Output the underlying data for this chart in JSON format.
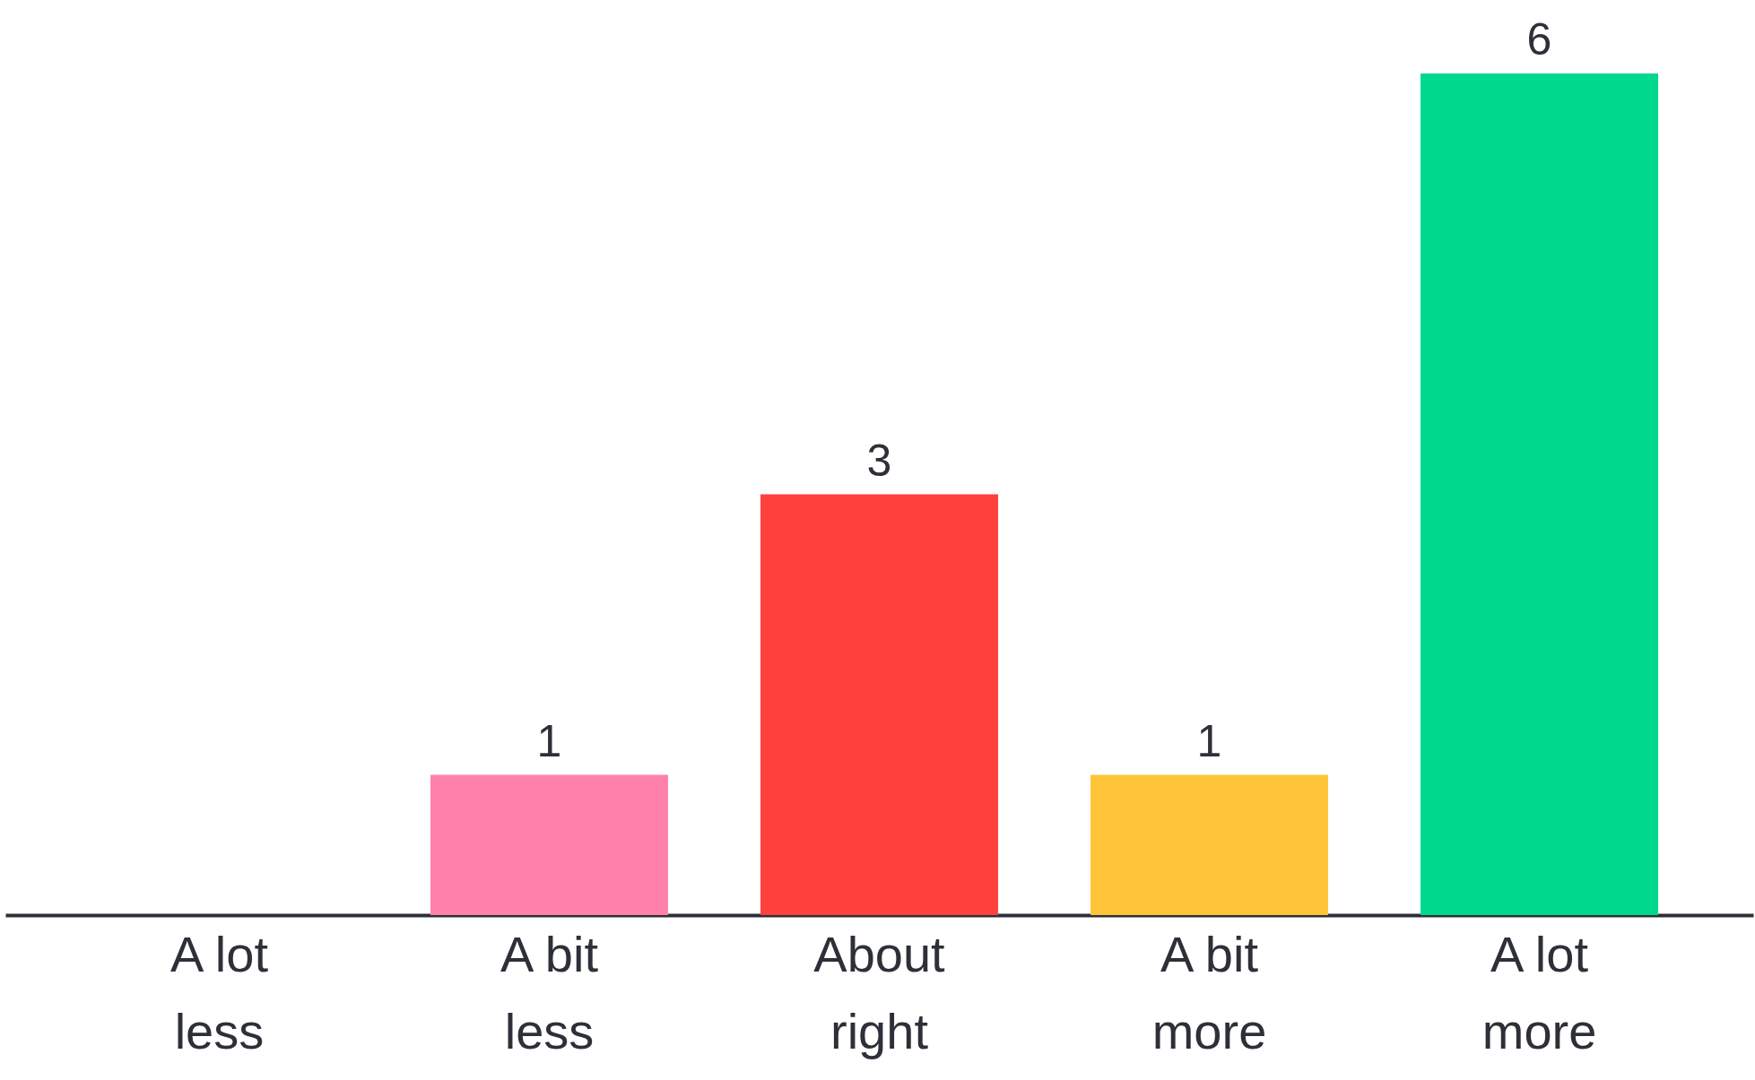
{
  "chart_data": {
    "type": "bar",
    "categories": [
      "A lot less",
      "A bit less",
      "About right",
      "A bit more",
      "A lot more"
    ],
    "values": [
      0,
      1,
      3,
      1,
      6
    ],
    "colors": [
      "#ff80aa",
      "#ff80aa",
      "#ff403d",
      "#fec538",
      "#00d88e"
    ],
    "value_labels": [
      null,
      "1",
      "3",
      "1",
      "6"
    ]
  }
}
